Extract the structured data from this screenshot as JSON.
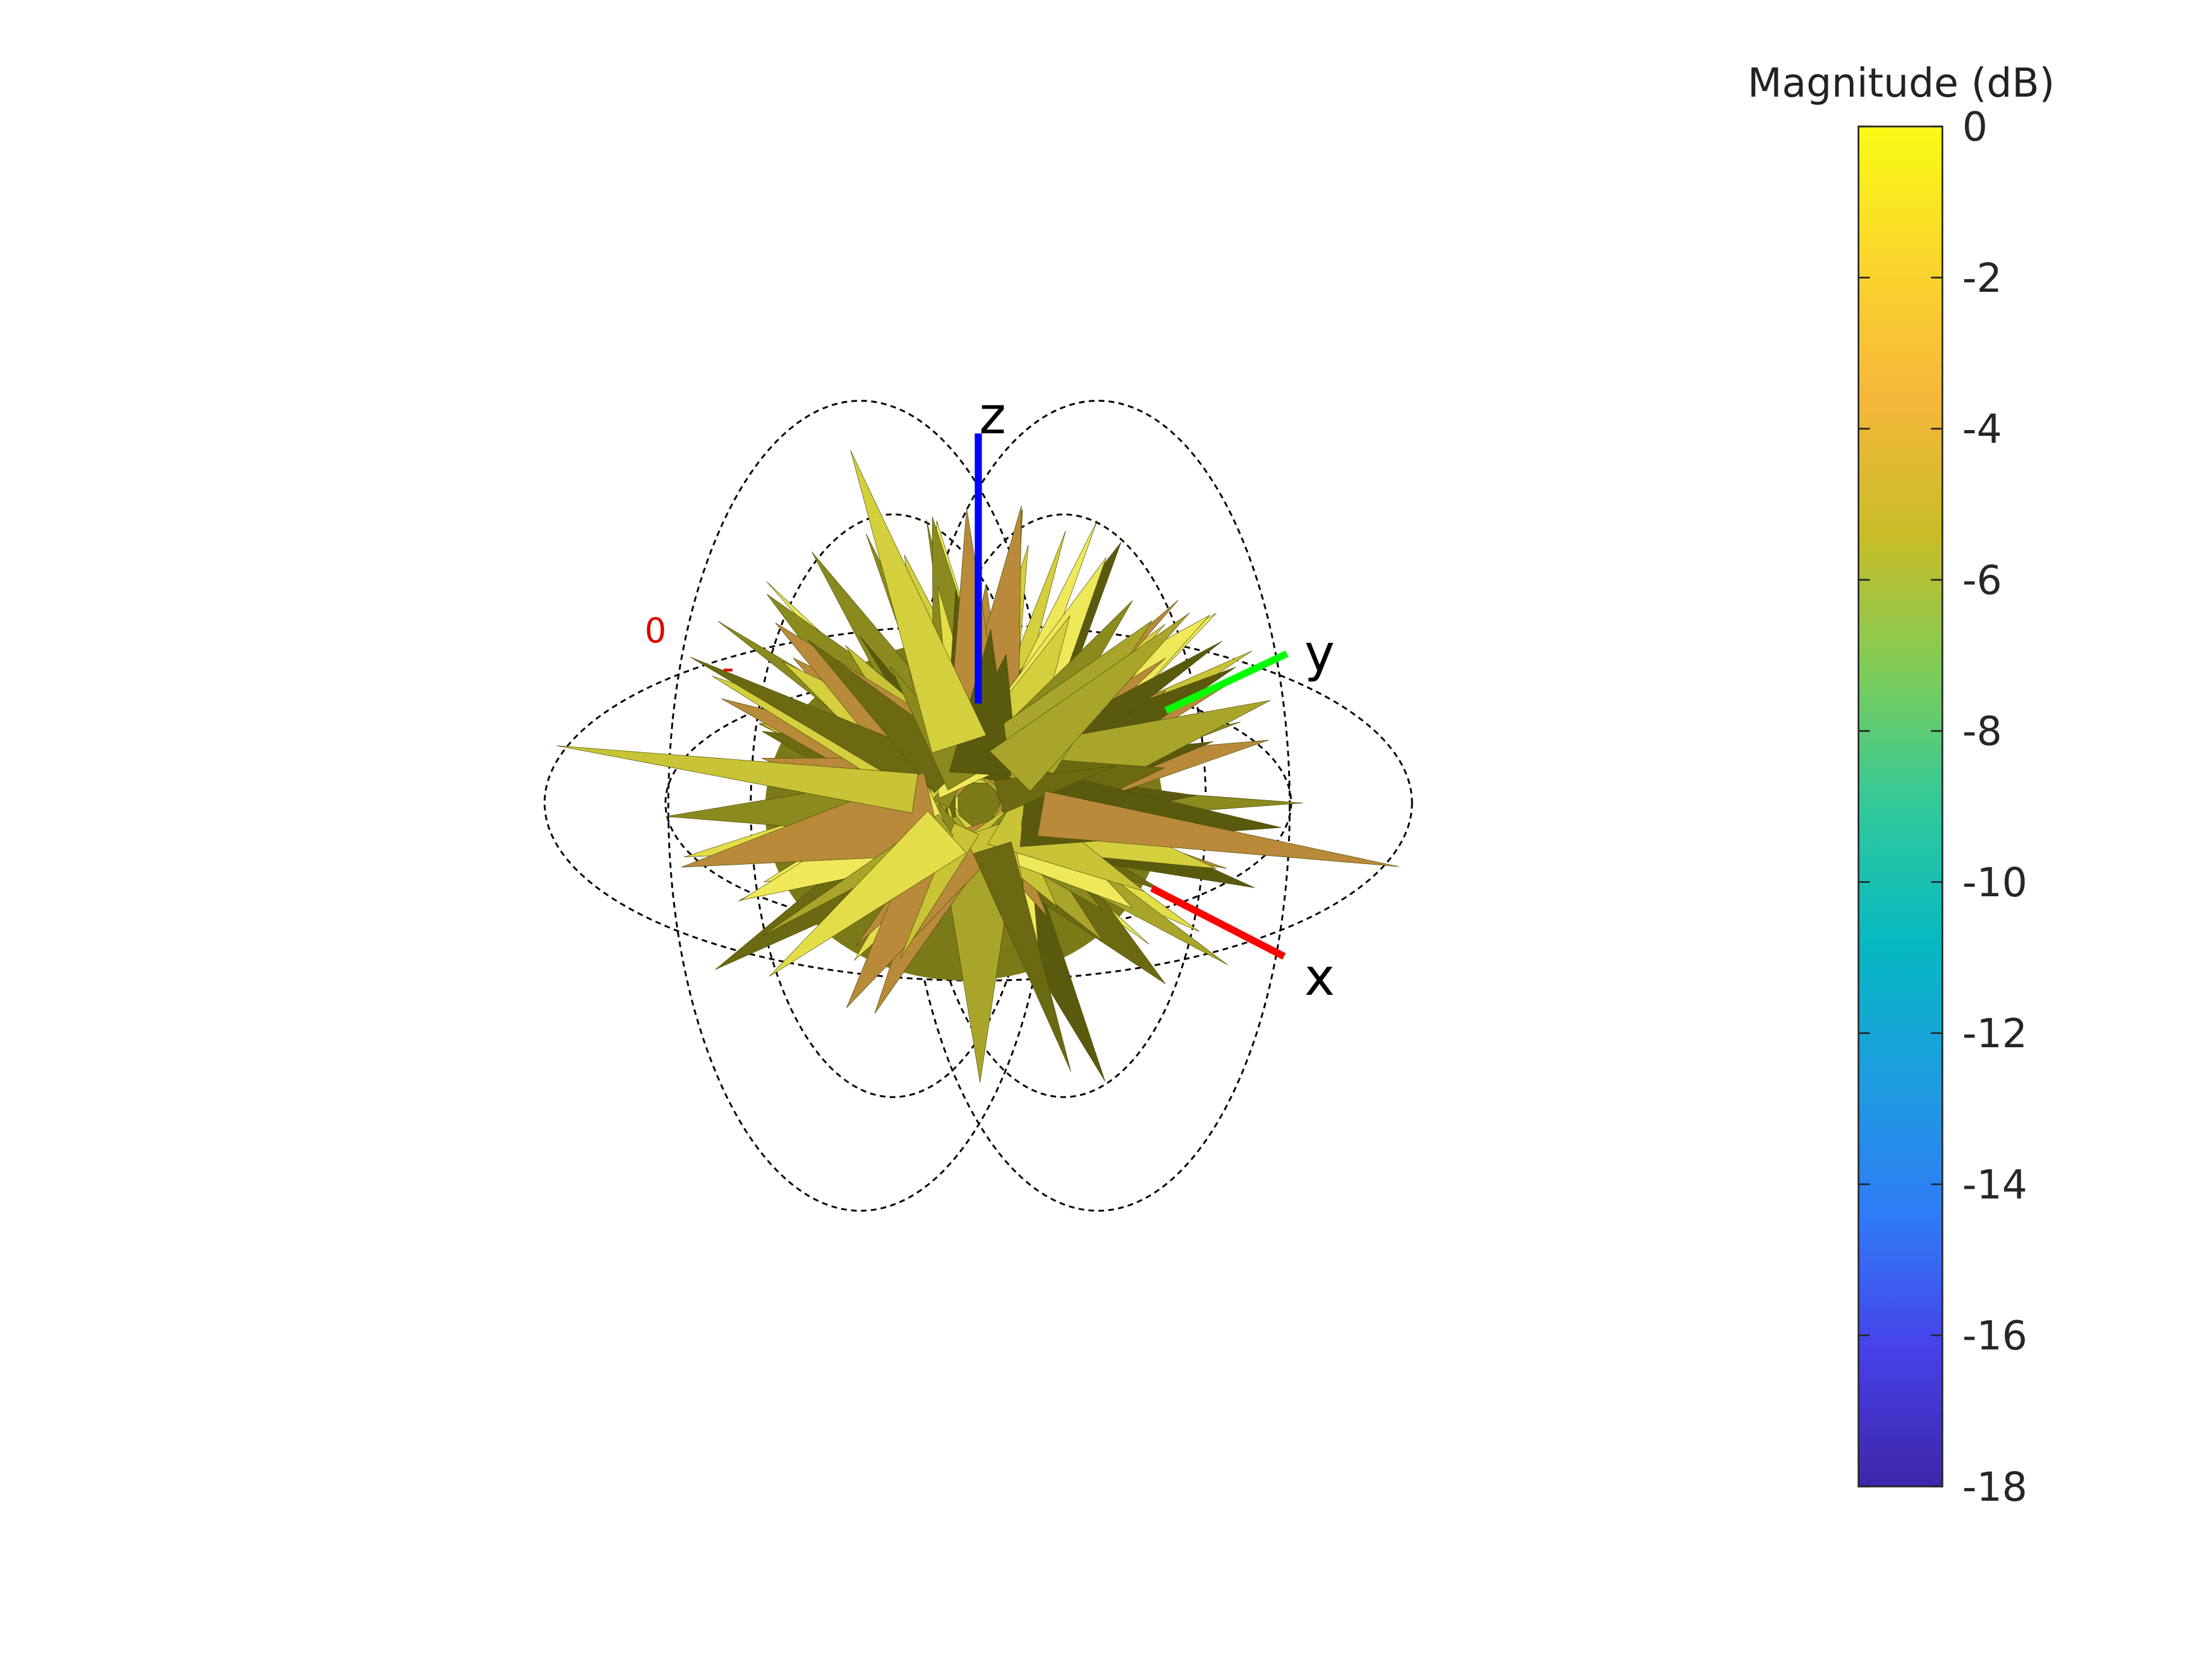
{
  "chart_data": {
    "type": "pattern3d",
    "colorbar": {
      "title": "Magnitude (dB)",
      "clim": [
        -18,
        0
      ],
      "ticks": [
        0,
        -2,
        -4,
        -6,
        -8,
        -10,
        -12,
        -14,
        -16,
        -18
      ],
      "colormap": [
        "#3d26a8",
        "#4741e9",
        "#2f7cf6",
        "#1d9ddf",
        "#06b9c1",
        "#31c99a",
        "#7fcc58",
        "#c9bd27",
        "#f5b73b",
        "#fbd62c",
        "#f9fb15"
      ]
    },
    "axes": [
      {
        "label": "x",
        "color": "#ff0000"
      },
      {
        "label": "y",
        "color": "#00ff00"
      },
      {
        "label": "z",
        "color": "#0000ff"
      }
    ],
    "ring_labels": [
      "0",
      "-"
    ]
  }
}
